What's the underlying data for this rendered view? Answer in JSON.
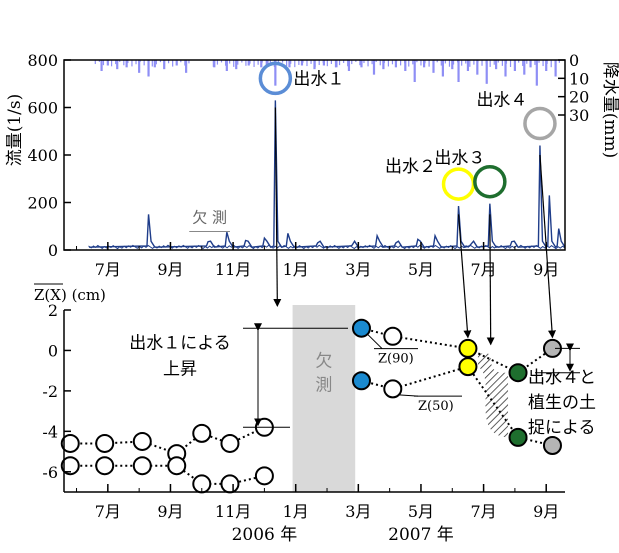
{
  "chart_data": [
    {
      "type": "line",
      "panel": "flow-and-rainfall",
      "ylabel": "流量(1/s)",
      "y2label": "降水量(mm)",
      "ylim": [
        0,
        800
      ],
      "y2lim": [
        0,
        30
      ],
      "yticks": [
        0,
        200,
        400,
        600,
        800
      ],
      "y2ticks": [
        0,
        10,
        20,
        30
      ],
      "xlim": [
        5.6,
        21.6
      ],
      "xticks": [
        7,
        9,
        11,
        13,
        15,
        17,
        19,
        21
      ],
      "xticklabels": [
        "7月",
        "9月",
        "11月",
        "1月",
        "3月",
        "5月",
        "7月",
        "9月"
      ],
      "missing_label": "欠 測",
      "missing_range": [
        9.6,
        10.9
      ],
      "flow": {
        "baseline": 12,
        "events": [
          {
            "x": 8.3,
            "y": 150
          },
          {
            "x": 10.2,
            "y": 35
          },
          {
            "x": 10.8,
            "y": 75
          },
          {
            "x": 11.4,
            "y": 40
          },
          {
            "x": 12.0,
            "y": 50
          },
          {
            "x": 12.35,
            "y": 630
          },
          {
            "x": 12.75,
            "y": 70
          },
          {
            "x": 13.7,
            "y": 30
          },
          {
            "x": 14.8,
            "y": 20
          },
          {
            "x": 15.6,
            "y": 60
          },
          {
            "x": 16.2,
            "y": 30
          },
          {
            "x": 16.9,
            "y": 45
          },
          {
            "x": 17.45,
            "y": 60
          },
          {
            "x": 18.2,
            "y": 185
          },
          {
            "x": 18.6,
            "y": 25
          },
          {
            "x": 19.2,
            "y": 195
          },
          {
            "x": 19.9,
            "y": 35
          },
          {
            "x": 20.8,
            "y": 440
          },
          {
            "x": 21.1,
            "y": 230
          },
          {
            "x": 21.4,
            "y": 90
          }
        ]
      },
      "rainfall": [
        {
          "x": 6.8,
          "mm": 6
        },
        {
          "x": 7.0,
          "mm": 3
        },
        {
          "x": 7.3,
          "mm": 5
        },
        {
          "x": 7.6,
          "mm": 4
        },
        {
          "x": 8.0,
          "mm": 7
        },
        {
          "x": 8.3,
          "mm": 9
        },
        {
          "x": 8.5,
          "mm": 4
        },
        {
          "x": 8.8,
          "mm": 5
        },
        {
          "x": 9.2,
          "mm": 3
        },
        {
          "x": 9.5,
          "mm": 7
        },
        {
          "x": 10.4,
          "mm": 4
        },
        {
          "x": 10.8,
          "mm": 6
        },
        {
          "x": 11.1,
          "mm": 5
        },
        {
          "x": 11.5,
          "mm": 3
        },
        {
          "x": 11.9,
          "mm": 4
        },
        {
          "x": 12.1,
          "mm": 3
        },
        {
          "x": 12.35,
          "mm": 14
        },
        {
          "x": 12.8,
          "mm": 4
        },
        {
          "x": 13.2,
          "mm": 3
        },
        {
          "x": 13.6,
          "mm": 5
        },
        {
          "x": 13.9,
          "mm": 3
        },
        {
          "x": 14.3,
          "mm": 4
        },
        {
          "x": 14.7,
          "mm": 6
        },
        {
          "x": 15.1,
          "mm": 4
        },
        {
          "x": 15.5,
          "mm": 8
        },
        {
          "x": 15.8,
          "mm": 5
        },
        {
          "x": 16.2,
          "mm": 4
        },
        {
          "x": 16.5,
          "mm": 6
        },
        {
          "x": 16.8,
          "mm": 12
        },
        {
          "x": 17.1,
          "mm": 4
        },
        {
          "x": 17.4,
          "mm": 7
        },
        {
          "x": 17.7,
          "mm": 9
        },
        {
          "x": 18.0,
          "mm": 5
        },
        {
          "x": 18.2,
          "mm": 12
        },
        {
          "x": 18.5,
          "mm": 6
        },
        {
          "x": 18.8,
          "mm": 8
        },
        {
          "x": 19.1,
          "mm": 13
        },
        {
          "x": 19.4,
          "mm": 5
        },
        {
          "x": 19.7,
          "mm": 9
        },
        {
          "x": 20.0,
          "mm": 6
        },
        {
          "x": 20.3,
          "mm": 8
        },
        {
          "x": 20.5,
          "mm": 4
        },
        {
          "x": 20.7,
          "mm": 14
        },
        {
          "x": 21.0,
          "mm": 6
        },
        {
          "x": 21.3,
          "mm": 9
        }
      ],
      "event_markers": [
        {
          "label": "出水１",
          "x": 12.35,
          "y": 630,
          "color": "#5b8dd6"
        },
        {
          "label": "出水２",
          "x": 18.2,
          "y": 185,
          "color": "#ffff00"
        },
        {
          "label": "出水３",
          "x": 19.2,
          "y": 195,
          "color": "#1e6e2e"
        },
        {
          "label": "出水４",
          "x": 20.8,
          "y": 440,
          "color": "#a6a6a6"
        }
      ],
      "colors": {
        "flow": "#1f3d8a",
        "rain": "#8e8ef5"
      }
    },
    {
      "type": "line",
      "panel": "mean-bed-elevation",
      "ylabel": "Z(X) (cm)",
      "ylim": [
        -7,
        2
      ],
      "yticks": [
        2,
        0,
        -2,
        -4,
        -6
      ],
      "xlim": [
        5.6,
        21.6
      ],
      "xticks": [
        7,
        9,
        11,
        13,
        15,
        17,
        19,
        21
      ],
      "xticklabels": [
        "7月",
        "9月",
        "11月",
        "1月",
        "3月",
        "5月",
        "7月",
        "9月"
      ],
      "year_labels": [
        {
          "x": 12.0,
          "text": "2006 年"
        },
        {
          "x": 17.0,
          "text": "2007 年"
        }
      ],
      "missing_label": "欠 測",
      "missing_range": [
        12.9,
        14.9
      ],
      "series": [
        {
          "name": "Z(90)",
          "points": [
            {
              "x": 5.8,
              "y": -4.6,
              "fill": "#ffffff"
            },
            {
              "x": 6.9,
              "y": -4.6,
              "fill": "#ffffff"
            },
            {
              "x": 8.1,
              "y": -4.5,
              "fill": "#ffffff"
            },
            {
              "x": 9.2,
              "y": -5.1,
              "fill": "#ffffff"
            },
            {
              "x": 10.0,
              "y": -4.1,
              "fill": "#ffffff"
            },
            {
              "x": 10.9,
              "y": -4.6,
              "fill": "#ffffff"
            },
            {
              "x": 12.0,
              "y": -3.8,
              "fill": "#ffffff"
            },
            {
              "x": 15.1,
              "y": 1.1,
              "fill": "#1a8ad0"
            },
            {
              "x": 16.1,
              "y": 0.7,
              "fill": "#ffffff"
            },
            {
              "x": 18.5,
              "y": 0.1,
              "fill": "#ffff00"
            },
            {
              "x": 20.1,
              "y": -1.1,
              "fill": "#1e6e2e"
            },
            {
              "x": 21.2,
              "y": 0.1,
              "fill": "#b5b5b5"
            }
          ]
        },
        {
          "name": "Z(50)",
          "points": [
            {
              "x": 5.8,
              "y": -5.7,
              "fill": "#ffffff"
            },
            {
              "x": 6.9,
              "y": -5.7,
              "fill": "#ffffff"
            },
            {
              "x": 8.1,
              "y": -5.7,
              "fill": "#ffffff"
            },
            {
              "x": 9.2,
              "y": -5.7,
              "fill": "#ffffff"
            },
            {
              "x": 10.0,
              "y": -6.6,
              "fill": "#ffffff"
            },
            {
              "x": 10.9,
              "y": -6.6,
              "fill": "#ffffff"
            },
            {
              "x": 12.0,
              "y": -6.2,
              "fill": "#ffffff"
            },
            {
              "x": 15.1,
              "y": -1.5,
              "fill": "#1a8ad0"
            },
            {
              "x": 16.1,
              "y": -1.9,
              "fill": "#ffffff"
            },
            {
              "x": 18.5,
              "y": -0.8,
              "fill": "#ffff00"
            },
            {
              "x": 20.1,
              "y": -4.3,
              "fill": "#1e6e2e"
            },
            {
              "x": 21.2,
              "y": -4.7,
              "fill": "#b5b5b5"
            }
          ]
        }
      ],
      "annotations": {
        "rise1": "出水１による\n上昇",
        "event4": "出水４と\n植生の土\n捉による",
        "z90_label": "Z(90)",
        "z50_label": "Z(50)"
      }
    }
  ]
}
